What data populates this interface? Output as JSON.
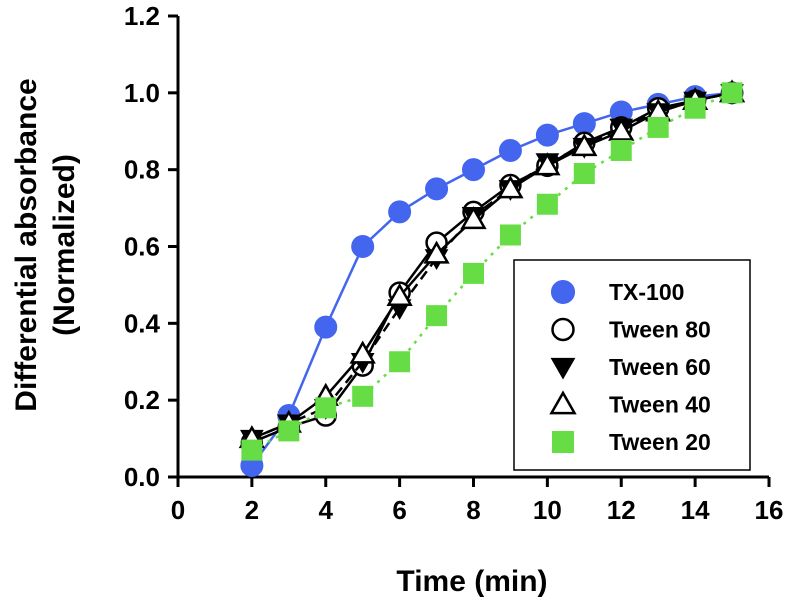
{
  "chart_data": {
    "type": "line",
    "xlabel": "Time (min)",
    "ylabel_line1": "Differential absorbance",
    "ylabel_line2": "(Normalized)",
    "xlim": [
      0,
      16
    ],
    "ylim": [
      0,
      1.2
    ],
    "xticks": [
      "0",
      "2",
      "4",
      "6",
      "8",
      "10",
      "12",
      "14",
      "16"
    ],
    "yticks": [
      "0.0",
      "0.2",
      "0.4",
      "0.6",
      "0.8",
      "1.0",
      "1.2"
    ],
    "grid": false,
    "legend_position": "bottom-right",
    "x": [
      2,
      3,
      4,
      5,
      6,
      7,
      8,
      9,
      10,
      11,
      12,
      13,
      14,
      15
    ],
    "series": [
      {
        "name": "TX-100",
        "marker": "circle-filled",
        "color": "#4466ee",
        "line": "solid",
        "values": [
          0.03,
          0.16,
          0.39,
          0.6,
          0.69,
          0.75,
          0.8,
          0.85,
          0.89,
          0.92,
          0.95,
          0.97,
          0.99,
          1.0
        ]
      },
      {
        "name": "Tween 80",
        "marker": "circle-open",
        "color": "#000000",
        "line": "solid",
        "values": [
          0.09,
          0.13,
          0.16,
          0.29,
          0.48,
          0.61,
          0.69,
          0.76,
          0.81,
          0.87,
          0.91,
          0.96,
          0.98,
          1.0
        ]
      },
      {
        "name": "Tween 60",
        "marker": "triangle-down-filled",
        "color": "#000000",
        "line": "dashed",
        "values": [
          0.1,
          0.14,
          0.18,
          0.3,
          0.44,
          0.57,
          0.68,
          0.75,
          0.82,
          0.86,
          0.91,
          0.95,
          0.98,
          1.0
        ]
      },
      {
        "name": "Tween 40",
        "marker": "triangle-up-open",
        "color": "#000000",
        "line": "solid",
        "values": [
          0.1,
          0.14,
          0.21,
          0.32,
          0.47,
          0.58,
          0.67,
          0.75,
          0.81,
          0.86,
          0.9,
          0.95,
          0.98,
          1.0
        ]
      },
      {
        "name": "Tween 20",
        "marker": "square-filled",
        "color": "#66dd44",
        "line": "dotted",
        "values": [
          0.07,
          0.12,
          0.18,
          0.21,
          0.3,
          0.42,
          0.53,
          0.63,
          0.71,
          0.79,
          0.85,
          0.91,
          0.96,
          1.0
        ]
      }
    ]
  }
}
